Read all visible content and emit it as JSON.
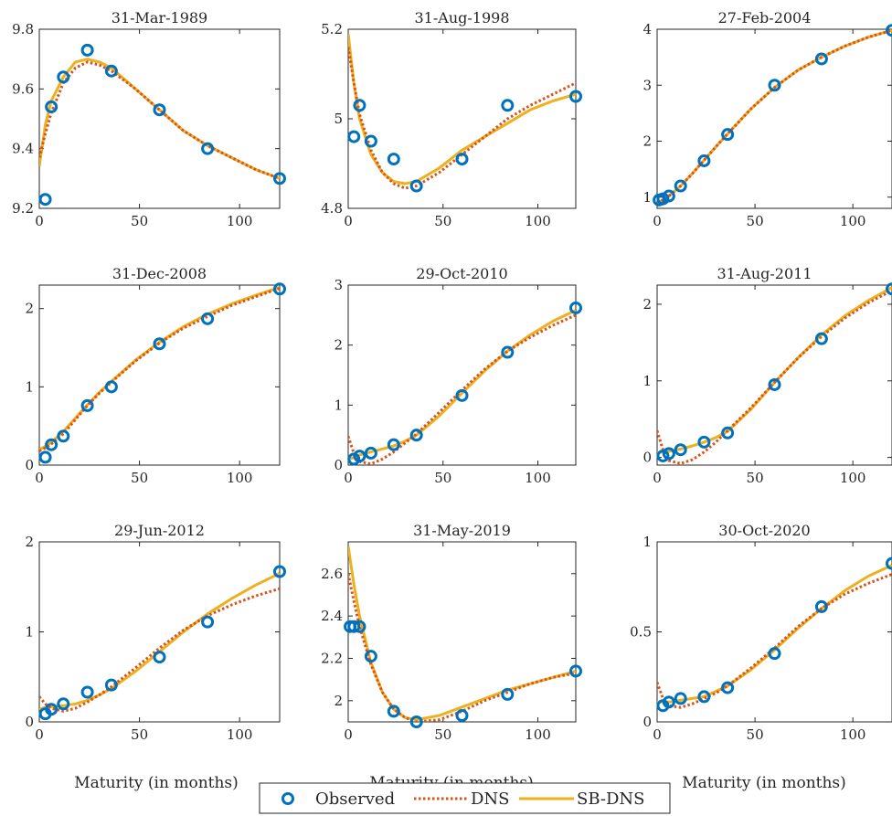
{
  "figure": {
    "xlabel": "Maturity (in months)",
    "legend": [
      {
        "label": "Observed",
        "marker": "circle",
        "color": "#0072BD"
      },
      {
        "label": "DNS",
        "style": "dotted",
        "color": "#D95319"
      },
      {
        "label": "SB-DNS",
        "style": "solid",
        "color": "#EDB120"
      }
    ]
  },
  "chart_data": [
    {
      "type": "line",
      "title": "31-Mar-1989",
      "xlim": [
        0,
        120
      ],
      "ylim": [
        9.2,
        9.8
      ],
      "xticks": [
        0,
        50,
        100
      ],
      "yticks": [
        9.2,
        9.4,
        9.6,
        9.8
      ],
      "ytick_labels": [
        "9.2",
        "9.4",
        "9.6",
        "9.8"
      ],
      "observed": {
        "x": [
          3,
          6,
          12,
          24,
          36,
          60,
          84,
          120
        ],
        "y": [
          9.23,
          9.54,
          9.64,
          9.73,
          9.66,
          9.53,
          9.4,
          9.3
        ]
      },
      "dns": {
        "x": [
          0,
          3,
          6,
          12,
          18,
          24,
          30,
          36,
          48,
          60,
          72,
          84,
          96,
          108,
          120
        ],
        "y": [
          9.37,
          9.45,
          9.52,
          9.62,
          9.67,
          9.69,
          9.68,
          9.66,
          9.6,
          9.53,
          9.46,
          9.41,
          9.37,
          9.33,
          9.3
        ]
      },
      "sbdns": {
        "x": [
          0,
          3,
          6,
          12,
          18,
          24,
          30,
          36,
          48,
          60,
          72,
          84,
          96,
          108,
          120
        ],
        "y": [
          9.34,
          9.48,
          9.56,
          9.64,
          9.69,
          9.7,
          9.69,
          9.67,
          9.6,
          9.53,
          9.46,
          9.41,
          9.37,
          9.33,
          9.3
        ]
      }
    },
    {
      "type": "line",
      "title": "31-Aug-1998",
      "xlim": [
        0,
        120
      ],
      "ylim": [
        4.8,
        5.2
      ],
      "xticks": [
        0,
        50,
        100
      ],
      "yticks": [
        4.8,
        5,
        5.2
      ],
      "ytick_labels": [
        "4.8",
        "5",
        "5.2"
      ],
      "observed": {
        "x": [
          3,
          6,
          12,
          24,
          36,
          60,
          84,
          120
        ],
        "y": [
          4.96,
          5.03,
          4.95,
          4.91,
          4.85,
          4.91,
          5.03,
          5.05
        ]
      },
      "dns": {
        "x": [
          0,
          3,
          6,
          12,
          18,
          24,
          30,
          36,
          48,
          60,
          72,
          84,
          96,
          108,
          120
        ],
        "y": [
          5.16,
          5.08,
          5.01,
          4.93,
          4.88,
          4.855,
          4.845,
          4.85,
          4.88,
          4.92,
          4.96,
          5.0,
          5.03,
          5.055,
          5.08
        ]
      },
      "sbdns": {
        "x": [
          0,
          3,
          6,
          12,
          18,
          24,
          30,
          36,
          48,
          60,
          72,
          84,
          96,
          108,
          120
        ],
        "y": [
          5.19,
          5.08,
          5.0,
          4.92,
          4.88,
          4.86,
          4.855,
          4.86,
          4.89,
          4.93,
          4.96,
          4.99,
          5.02,
          5.04,
          5.055
        ]
      }
    },
    {
      "type": "line",
      "title": "27-Feb-2004",
      "xlim": [
        0,
        120
      ],
      "ylim": [
        0.8,
        4
      ],
      "xticks": [
        0,
        50,
        100
      ],
      "yticks": [
        1,
        2,
        3,
        4
      ],
      "ytick_labels": [
        "1",
        "2",
        "3",
        "4"
      ],
      "observed": {
        "x": [
          1,
          3,
          6,
          12,
          24,
          36,
          60,
          84,
          120
        ],
        "y": [
          0.95,
          0.97,
          1.02,
          1.2,
          1.65,
          2.12,
          3.0,
          3.47,
          3.98
        ]
      },
      "dns": {
        "x": [
          0,
          3,
          6,
          12,
          18,
          24,
          30,
          36,
          48,
          60,
          72,
          84,
          96,
          108,
          120
        ],
        "y": [
          0.9,
          0.95,
          1.02,
          1.2,
          1.42,
          1.66,
          1.9,
          2.13,
          2.58,
          2.96,
          3.27,
          3.5,
          3.7,
          3.86,
          3.98
        ]
      },
      "sbdns": {
        "x": [
          0,
          3,
          6,
          12,
          18,
          24,
          30,
          36,
          48,
          60,
          72,
          84,
          96,
          108,
          120
        ],
        "y": [
          0.9,
          0.95,
          1.02,
          1.2,
          1.42,
          1.66,
          1.9,
          2.13,
          2.58,
          2.96,
          3.27,
          3.5,
          3.7,
          3.86,
          3.98
        ]
      }
    },
    {
      "type": "line",
      "title": "31-Dec-2008",
      "xlim": [
        0,
        120
      ],
      "ylim": [
        0,
        2.3
      ],
      "xticks": [
        0,
        50,
        100
      ],
      "yticks": [
        0,
        1,
        2
      ],
      "ytick_labels": [
        "0",
        "1",
        "2"
      ],
      "observed": {
        "x": [
          3,
          6,
          12,
          24,
          36,
          60,
          84,
          120
        ],
        "y": [
          0.1,
          0.26,
          0.37,
          0.76,
          1.0,
          1.55,
          1.87,
          2.25
        ]
      },
      "dns": {
        "x": [
          0,
          3,
          6,
          12,
          18,
          24,
          30,
          36,
          48,
          60,
          72,
          84,
          96,
          108,
          120
        ],
        "y": [
          0.18,
          0.22,
          0.27,
          0.4,
          0.58,
          0.76,
          0.92,
          1.06,
          1.33,
          1.56,
          1.75,
          1.9,
          2.04,
          2.15,
          2.26
        ]
      },
      "sbdns": {
        "x": [
          0,
          3,
          6,
          12,
          18,
          24,
          30,
          36,
          48,
          60,
          72,
          84,
          96,
          108,
          120
        ],
        "y": [
          0.2,
          0.24,
          0.29,
          0.43,
          0.6,
          0.77,
          0.93,
          1.07,
          1.34,
          1.57,
          1.77,
          1.93,
          2.06,
          2.17,
          2.27
        ]
      }
    },
    {
      "type": "line",
      "title": "29-Oct-2010",
      "xlim": [
        0,
        120
      ],
      "ylim": [
        0,
        3
      ],
      "xticks": [
        0,
        50,
        100
      ],
      "yticks": [
        0,
        1,
        2,
        3
      ],
      "ytick_labels": [
        "0",
        "1",
        "2",
        "3"
      ],
      "observed": {
        "x": [
          3,
          6,
          12,
          24,
          36,
          60,
          84,
          120
        ],
        "y": [
          0.1,
          0.15,
          0.2,
          0.34,
          0.5,
          1.16,
          1.88,
          2.62
        ]
      },
      "dns": {
        "x": [
          0,
          3,
          6,
          12,
          18,
          24,
          30,
          36,
          48,
          60,
          72,
          84,
          96,
          108,
          120
        ],
        "y": [
          0.48,
          0.2,
          0.06,
          0.02,
          0.1,
          0.22,
          0.37,
          0.52,
          0.88,
          1.25,
          1.6,
          1.9,
          2.13,
          2.33,
          2.5
        ]
      },
      "sbdns": {
        "x": [
          0,
          3,
          6,
          12,
          18,
          24,
          30,
          36,
          48,
          60,
          72,
          84,
          96,
          108,
          120
        ],
        "y": [
          0.09,
          0.13,
          0.17,
          0.22,
          0.27,
          0.32,
          0.4,
          0.5,
          0.82,
          1.2,
          1.57,
          1.9,
          2.17,
          2.4,
          2.58
        ]
      }
    },
    {
      "type": "line",
      "title": "31-Aug-2011",
      "xlim": [
        0,
        120
      ],
      "ylim": [
        -0.1,
        2.25
      ],
      "xticks": [
        0,
        50,
        100
      ],
      "yticks": [
        0,
        1,
        2
      ],
      "ytick_labels": [
        "0",
        "1",
        "2"
      ],
      "observed": {
        "x": [
          3,
          6,
          12,
          24,
          36,
          60,
          84,
          120
        ],
        "y": [
          0.02,
          0.05,
          0.1,
          0.2,
          0.32,
          0.95,
          1.55,
          2.2
        ]
      },
      "dns": {
        "x": [
          0,
          3,
          6,
          12,
          18,
          24,
          30,
          36,
          48,
          60,
          72,
          84,
          96,
          108,
          120
        ],
        "y": [
          0.35,
          0.1,
          -0.04,
          -0.08,
          -0.03,
          0.07,
          0.2,
          0.35,
          0.65,
          0.98,
          1.3,
          1.58,
          1.82,
          2.02,
          2.18
        ]
      },
      "sbdns": {
        "x": [
          0,
          3,
          6,
          12,
          18,
          24,
          30,
          36,
          48,
          60,
          72,
          84,
          96,
          108,
          120
        ],
        "y": [
          0.06,
          0.07,
          0.08,
          0.11,
          0.15,
          0.2,
          0.26,
          0.34,
          0.63,
          0.98,
          1.3,
          1.6,
          1.85,
          2.05,
          2.22
        ]
      }
    },
    {
      "type": "line",
      "title": "29-Jun-2012",
      "xlim": [
        0,
        120
      ],
      "ylim": [
        0,
        2
      ],
      "xticks": [
        0,
        50,
        100
      ],
      "yticks": [
        0,
        1,
        2
      ],
      "ytick_labels": [
        "0",
        "1",
        "2"
      ],
      "observed": {
        "x": [
          3,
          6,
          12,
          24,
          36,
          60,
          84,
          120
        ],
        "y": [
          0.09,
          0.14,
          0.2,
          0.33,
          0.41,
          0.72,
          1.11,
          1.67
        ]
      },
      "dns": {
        "x": [
          0,
          3,
          6,
          12,
          18,
          24,
          30,
          36,
          48,
          60,
          72,
          84,
          96,
          108,
          120
        ],
        "y": [
          0.28,
          0.2,
          0.15,
          0.12,
          0.15,
          0.22,
          0.3,
          0.39,
          0.6,
          0.82,
          1.02,
          1.18,
          1.3,
          1.4,
          1.48
        ]
      },
      "sbdns": {
        "x": [
          0,
          3,
          6,
          12,
          18,
          24,
          30,
          36,
          48,
          60,
          72,
          84,
          96,
          108,
          120
        ],
        "y": [
          0.14,
          0.16,
          0.17,
          0.18,
          0.2,
          0.24,
          0.3,
          0.37,
          0.56,
          0.78,
          1.0,
          1.2,
          1.37,
          1.52,
          1.65
        ]
      }
    },
    {
      "type": "line",
      "title": "31-May-2019",
      "xlim": [
        0,
        120
      ],
      "ylim": [
        1.9,
        2.75
      ],
      "xticks": [
        0,
        50,
        100
      ],
      "yticks": [
        2,
        2.2,
        2.4,
        2.6
      ],
      "ytick_labels": [
        "2",
        "2.2",
        "2.4",
        "2.6"
      ],
      "observed": {
        "x": [
          1,
          3,
          6,
          12,
          24,
          36,
          60,
          84,
          120
        ],
        "y": [
          2.35,
          2.35,
          2.35,
          2.21,
          1.95,
          1.9,
          1.93,
          2.03,
          2.14
        ]
      },
      "dns": {
        "x": [
          0,
          3,
          6,
          12,
          18,
          24,
          30,
          36,
          48,
          60,
          72,
          84,
          96,
          108,
          120
        ],
        "y": [
          2.6,
          2.47,
          2.35,
          2.17,
          2.04,
          1.96,
          1.92,
          1.9,
          1.91,
          1.95,
          2.0,
          2.04,
          2.08,
          2.11,
          2.13
        ]
      },
      "sbdns": {
        "x": [
          0,
          3,
          6,
          12,
          18,
          24,
          30,
          36,
          48,
          60,
          72,
          84,
          96,
          108,
          120
        ],
        "y": [
          2.73,
          2.55,
          2.4,
          2.18,
          2.04,
          1.96,
          1.92,
          1.91,
          1.93,
          1.97,
          2.01,
          2.05,
          2.08,
          2.11,
          2.14
        ]
      }
    },
    {
      "type": "line",
      "title": "30-Oct-2020",
      "xlim": [
        0,
        120
      ],
      "ylim": [
        0,
        1
      ],
      "xticks": [
        0,
        50,
        100
      ],
      "yticks": [
        0,
        0.5,
        1
      ],
      "ytick_labels": [
        "0",
        "0.5",
        "1"
      ],
      "observed": {
        "x": [
          3,
          6,
          12,
          24,
          36,
          60,
          84,
          120
        ],
        "y": [
          0.09,
          0.11,
          0.13,
          0.14,
          0.19,
          0.38,
          0.64,
          0.88
        ]
      },
      "dns": {
        "x": [
          0,
          3,
          6,
          12,
          18,
          24,
          30,
          36,
          48,
          60,
          72,
          84,
          96,
          108,
          120
        ],
        "y": [
          0.22,
          0.13,
          0.09,
          0.08,
          0.1,
          0.13,
          0.16,
          0.2,
          0.3,
          0.41,
          0.53,
          0.63,
          0.71,
          0.77,
          0.82
        ]
      },
      "sbdns": {
        "x": [
          0,
          3,
          6,
          12,
          18,
          24,
          30,
          36,
          48,
          60,
          72,
          84,
          96,
          108,
          120
        ],
        "y": [
          0.11,
          0.11,
          0.11,
          0.12,
          0.13,
          0.14,
          0.17,
          0.2,
          0.29,
          0.4,
          0.52,
          0.63,
          0.73,
          0.81,
          0.87
        ]
      }
    }
  ]
}
